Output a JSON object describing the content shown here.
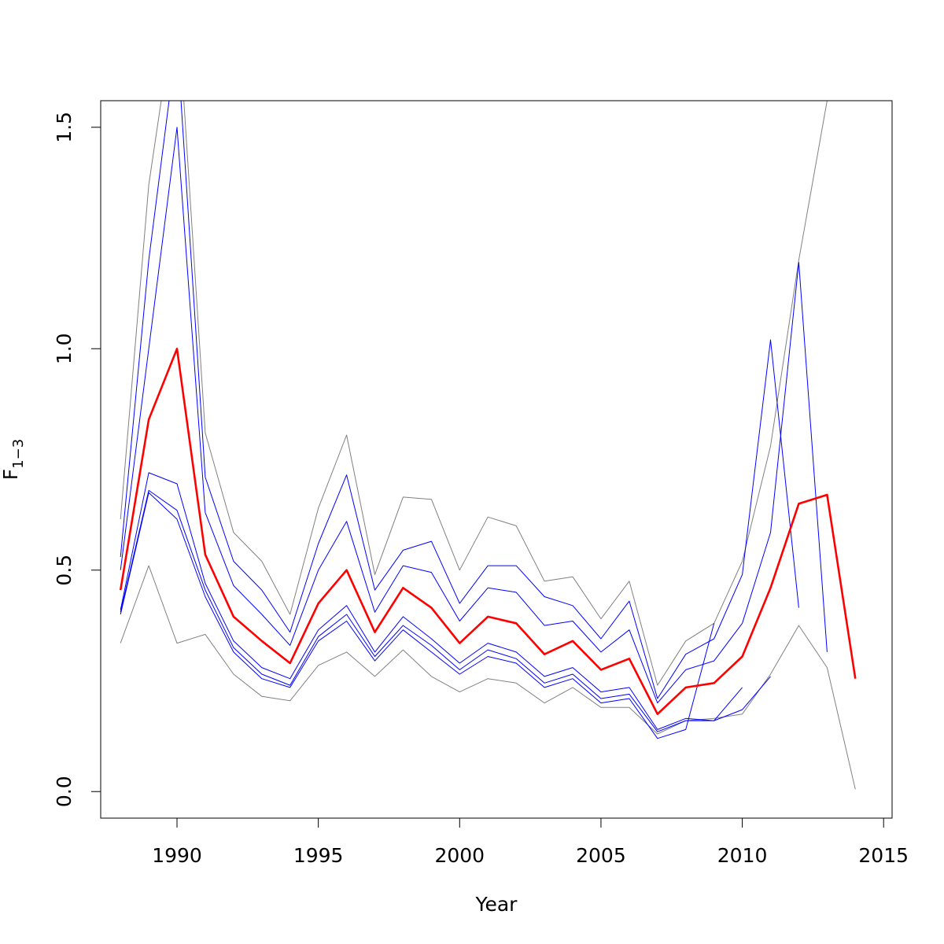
{
  "chart_data": {
    "type": "line",
    "xlabel": "Year",
    "ylabel_main": "F",
    "ylabel_sub": "1−3",
    "xlim": [
      1987.3,
      2015.3
    ],
    "ylim": [
      -0.06,
      1.56
    ],
    "x_ticks": [
      1990,
      1995,
      2000,
      2005,
      2010,
      2015
    ],
    "x_tick_labels": [
      "1990",
      "1995",
      "2000",
      "2005",
      "2010",
      "2015"
    ],
    "y_ticks": [
      0.0,
      0.5,
      1.0,
      1.5
    ],
    "y_tick_labels": [
      "0.0",
      "0.5",
      "1.0",
      "1.5"
    ],
    "grid": false,
    "legend": "none",
    "colors": {
      "estimate": "#ff0000",
      "retrospective": "#0000ff",
      "interval": "#808080",
      "axis": "#000000"
    },
    "series": [
      {
        "role": "interval",
        "color": "#808080",
        "x": [
          1988,
          1989,
          1990,
          1991,
          1992,
          1993,
          1994,
          1995,
          1996,
          1997,
          1998,
          1999,
          2000,
          2001,
          2002,
          2003,
          2004,
          2005,
          2006,
          2007,
          2008,
          2009,
          2010,
          2011,
          2012,
          2013,
          2014
        ],
        "y": [
          0.615,
          1.37,
          1.8,
          0.81,
          0.585,
          0.52,
          0.4,
          0.64,
          0.805,
          0.49,
          0.665,
          0.66,
          0.5,
          0.62,
          0.6,
          0.475,
          0.485,
          0.39,
          0.475,
          0.24,
          0.34,
          0.38,
          0.52,
          0.78,
          1.2,
          1.56,
          null
        ]
      },
      {
        "role": "interval",
        "color": "#808080",
        "x": [
          1988,
          1989,
          1990,
          1991,
          1992,
          1993,
          1994,
          1995,
          1996,
          1997,
          1998,
          1999,
          2000,
          2001,
          2002,
          2003,
          2004,
          2005,
          2006,
          2007,
          2008,
          2009,
          2010,
          2011,
          2012,
          2013,
          2014
        ],
        "y": [
          0.335,
          0.51,
          0.335,
          0.355,
          0.265,
          0.215,
          0.205,
          0.285,
          0.315,
          0.26,
          0.32,
          0.26,
          0.225,
          0.255,
          0.245,
          0.2,
          0.235,
          0.19,
          0.19,
          0.13,
          0.16,
          0.165,
          0.175,
          0.265,
          0.375,
          0.28,
          0.005
        ]
      },
      {
        "role": "retrospective",
        "color": "#0000ff",
        "x": [
          1988,
          1989,
          1990,
          1991,
          1992,
          1993,
          1994,
          1995,
          1996,
          1997,
          1998,
          1999,
          2000,
          2001,
          2002,
          2003,
          2004,
          2005,
          2006,
          2007,
          2008,
          2009,
          2010,
          2011,
          2012,
          2013
        ],
        "y": [
          0.53,
          1.2,
          1.7,
          0.71,
          0.52,
          0.455,
          0.36,
          0.56,
          0.715,
          0.455,
          0.545,
          0.565,
          0.425,
          0.51,
          0.51,
          0.44,
          0.42,
          0.345,
          0.43,
          0.21,
          0.31,
          0.345,
          0.49,
          1.02,
          0.415,
          null
        ]
      },
      {
        "role": "retrospective",
        "color": "#0000ff",
        "x": [
          1988,
          1989,
          1990,
          1991,
          1992,
          1993,
          1994,
          1995,
          1996,
          1997,
          1998,
          1999,
          2000,
          2001,
          2002,
          2003,
          2004,
          2005,
          2006,
          2007,
          2008,
          2009,
          2010,
          2011,
          2012,
          2013
        ],
        "y": [
          0.5,
          1.0,
          1.5,
          0.63,
          0.465,
          0.4,
          0.33,
          0.5,
          0.61,
          0.405,
          0.51,
          0.495,
          0.385,
          0.46,
          0.45,
          0.375,
          0.385,
          0.315,
          0.365,
          0.2,
          0.275,
          0.295,
          0.38,
          0.585,
          1.195,
          0.315
        ]
      },
      {
        "role": "retrospective",
        "color": "#0000ff",
        "x": [
          1988,
          1989,
          1990,
          1991,
          1992,
          1993,
          1994,
          1995,
          1996,
          1997,
          1998,
          1999,
          2000,
          2001,
          2002,
          2003,
          2004,
          2005,
          2006,
          2007,
          2008,
          2009,
          2010,
          2011
        ],
        "y": [
          0.41,
          0.72,
          0.695,
          0.47,
          0.34,
          0.28,
          0.255,
          0.365,
          0.42,
          0.315,
          0.395,
          0.345,
          0.29,
          0.335,
          0.315,
          0.26,
          0.28,
          0.225,
          0.235,
          0.14,
          0.165,
          0.16,
          0.185,
          0.26
        ]
      },
      {
        "role": "retrospective",
        "color": "#0000ff",
        "x": [
          1988,
          1989,
          1990,
          1991,
          1992,
          1993,
          1994,
          1995,
          1996,
          1997,
          1998,
          1999,
          2000,
          2001,
          2002,
          2003,
          2004,
          2005,
          2006,
          2007,
          2008,
          2009,
          2010
        ],
        "y": [
          0.405,
          0.68,
          0.635,
          0.455,
          0.325,
          0.265,
          0.24,
          0.35,
          0.4,
          0.305,
          0.375,
          0.33,
          0.275,
          0.32,
          0.3,
          0.245,
          0.265,
          0.21,
          0.22,
          0.135,
          0.16,
          0.16,
          0.235
        ]
      },
      {
        "role": "retrospective",
        "color": "#0000ff",
        "x": [
          1988,
          1989,
          1990,
          1991,
          1992,
          1993,
          1994,
          1995,
          1996,
          1997,
          1998,
          1999,
          2000,
          2001,
          2002,
          2003,
          2004,
          2005,
          2006,
          2007,
          2008,
          2009
        ],
        "y": [
          0.4,
          0.675,
          0.615,
          0.44,
          0.315,
          0.255,
          0.235,
          0.34,
          0.385,
          0.295,
          0.365,
          0.315,
          0.265,
          0.305,
          0.29,
          0.235,
          0.255,
          0.2,
          0.21,
          0.12,
          0.14,
          0.38
        ]
      },
      {
        "role": "estimate",
        "color": "#ff0000",
        "x": [
          1988,
          1989,
          1990,
          1991,
          1992,
          1993,
          1994,
          1995,
          1996,
          1997,
          1998,
          1999,
          2000,
          2001,
          2002,
          2003,
          2004,
          2005,
          2006,
          2007,
          2008,
          2009,
          2010,
          2011,
          2012,
          2013,
          2014
        ],
        "y": [
          0.455,
          0.84,
          1.0,
          0.535,
          0.395,
          0.34,
          0.29,
          0.425,
          0.5,
          0.36,
          0.46,
          0.415,
          0.335,
          0.395,
          0.38,
          0.31,
          0.34,
          0.275,
          0.3,
          0.175,
          0.235,
          0.245,
          0.305,
          0.46,
          0.65,
          0.67,
          0.255
        ]
      }
    ]
  }
}
